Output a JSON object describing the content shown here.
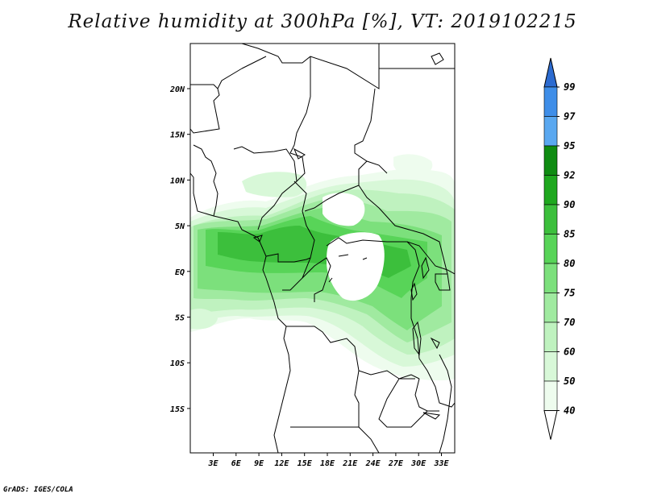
{
  "title": "Relative humidity at 300hPa [%], VT: 2019102215",
  "credit": "GrADS: IGES/COLA",
  "map": {
    "lat_ticks": [
      "20N",
      "15N",
      "10N",
      "5N",
      "EQ",
      "5S",
      "10S",
      "15S"
    ],
    "lon_ticks": [
      "3E",
      "6E",
      "9E",
      "12E",
      "15E",
      "18E",
      "21E",
      "24E",
      "27E",
      "30E",
      "33E"
    ],
    "lon_range": [
      0,
      35
    ],
    "lat_range": [
      -20,
      25
    ]
  },
  "colorbar": {
    "labels": [
      "99",
      "97",
      "95",
      "92",
      "90",
      "85",
      "80",
      "75",
      "70",
      "60",
      "50",
      "40"
    ],
    "colors": [
      "#2c6bd0",
      "#3f8ee8",
      "#5aa8f0",
      "#0f8c12",
      "#1fa81f",
      "#3cbf3c",
      "#58d458",
      "#7ce07c",
      "#a0eaa0",
      "#bff2bf",
      "#d8f8d8",
      "#eefcee"
    ]
  }
}
